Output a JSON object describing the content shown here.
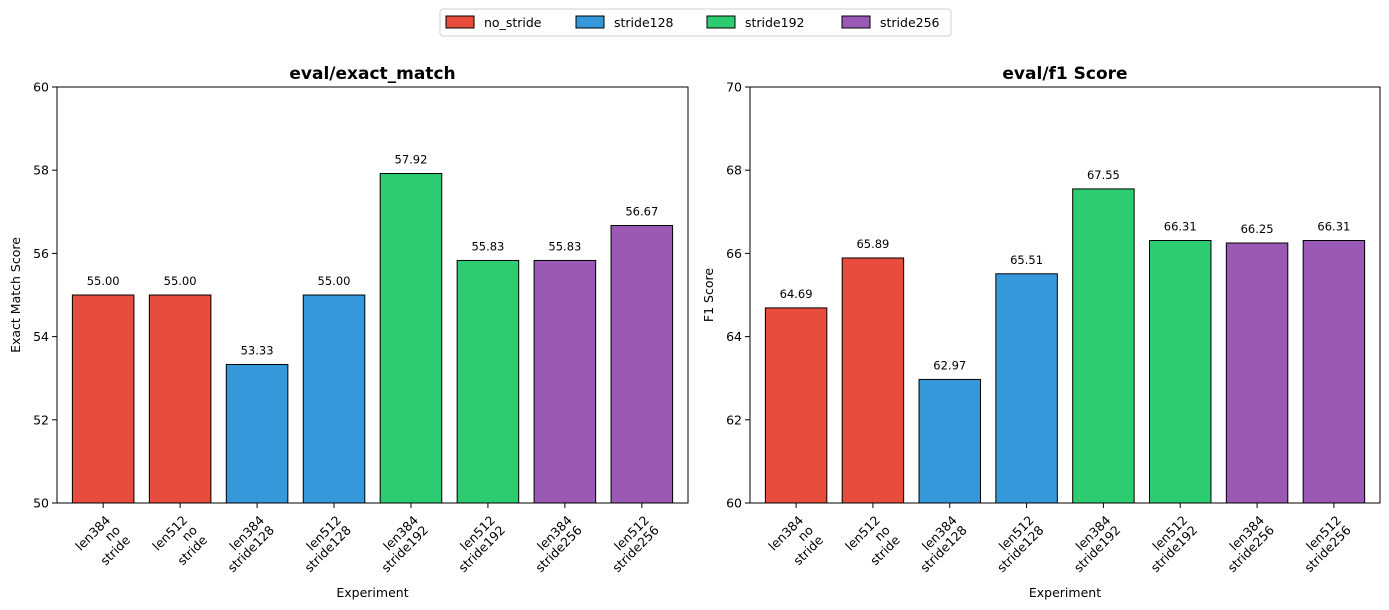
{
  "legend": [
    {
      "name": "no_stride",
      "color": "#e74c3c"
    },
    {
      "name": "stride128",
      "color": "#3498db"
    },
    {
      "name": "stride192",
      "color": "#2ecc71"
    },
    {
      "name": "stride256",
      "color": "#9b59b6"
    }
  ],
  "chart_data": [
    {
      "type": "bar",
      "title": "eval/exact_match",
      "xlabel": "Experiment",
      "ylabel": "Exact Match Score",
      "ylim": [
        50,
        60
      ],
      "yticks": [
        50,
        52,
        54,
        56,
        58,
        60
      ],
      "categories": [
        [
          "len384",
          "no",
          "stride"
        ],
        [
          "len512",
          "no",
          "stride"
        ],
        [
          "len384",
          "stride128"
        ],
        [
          "len512",
          "stride128"
        ],
        [
          "len384",
          "stride192"
        ],
        [
          "len512",
          "stride192"
        ],
        [
          "len384",
          "stride256"
        ],
        [
          "len512",
          "stride256"
        ]
      ],
      "groups": [
        "no_stride",
        "no_stride",
        "stride128",
        "stride128",
        "stride192",
        "stride192",
        "stride256",
        "stride256"
      ],
      "values": [
        55.0,
        55.0,
        53.33,
        55.0,
        57.92,
        55.83,
        55.83,
        56.67
      ],
      "value_labels": [
        "55.00",
        "55.00",
        "53.33",
        "55.00",
        "57.92",
        "55.83",
        "55.83",
        "56.67"
      ]
    },
    {
      "type": "bar",
      "title": "eval/f1 Score",
      "xlabel": "Experiment",
      "ylabel": "F1 Score",
      "ylim": [
        60,
        70
      ],
      "yticks": [
        60,
        62,
        64,
        66,
        68,
        70
      ],
      "categories": [
        [
          "len384",
          "no",
          "stride"
        ],
        [
          "len512",
          "no",
          "stride"
        ],
        [
          "len384",
          "stride128"
        ],
        [
          "len512",
          "stride128"
        ],
        [
          "len384",
          "stride192"
        ],
        [
          "len512",
          "stride192"
        ],
        [
          "len384",
          "stride256"
        ],
        [
          "len512",
          "stride256"
        ]
      ],
      "groups": [
        "no_stride",
        "no_stride",
        "stride128",
        "stride128",
        "stride192",
        "stride192",
        "stride256",
        "stride256"
      ],
      "values": [
        64.69,
        65.89,
        62.97,
        65.51,
        67.55,
        66.31,
        66.25,
        66.31
      ],
      "value_labels": [
        "64.69",
        "65.89",
        "62.97",
        "65.51",
        "67.55",
        "66.31",
        "66.25",
        "66.31"
      ]
    }
  ]
}
